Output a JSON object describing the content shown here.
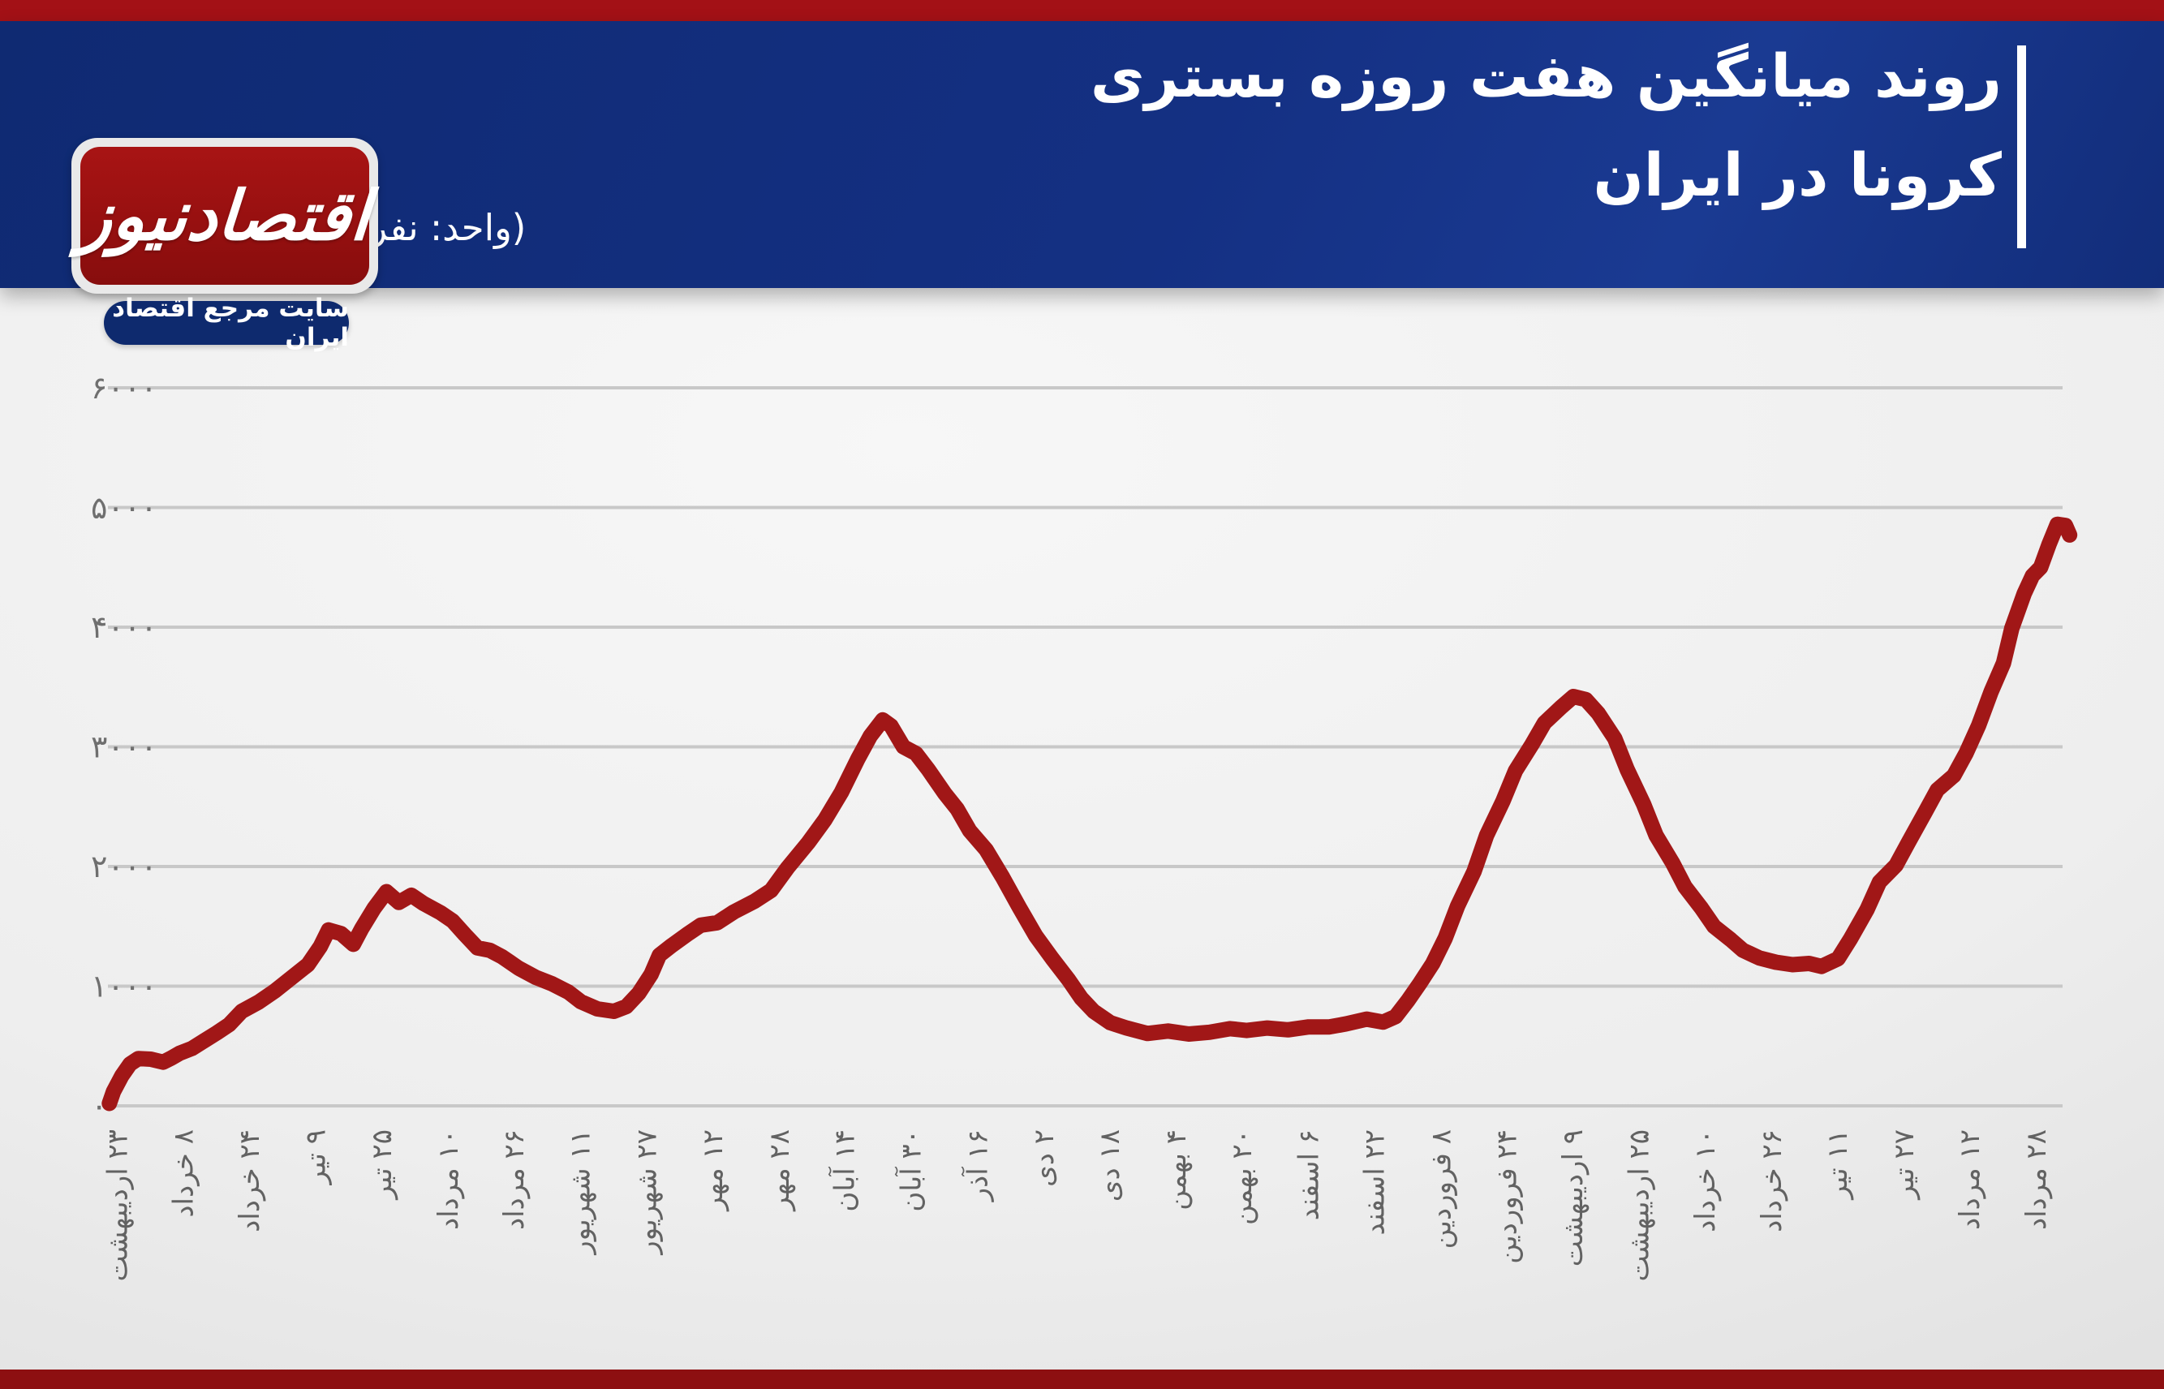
{
  "header": {
    "title_line1": "روند میانگین هفت روزه بستری",
    "title_line2": "کرونا در ایران",
    "unit": "(واحد: نفر)",
    "banner_color": "#143083",
    "top_strip_color": "#a31116",
    "bottom_strip_color": "#8d0f11",
    "accent_bar_color": "#ffffff"
  },
  "logo": {
    "wordmark": "اقتصادنیوز",
    "tagline": "سایت مرجع اقتصاد ایران",
    "box_color": "#9c1111",
    "tagline_bg": "#0e2a6e"
  },
  "chart_data": {
    "type": "line",
    "title": "روند میانگین هفت روزه بستری کرونا در ایران",
    "unit_label": "(واحد: نفر)",
    "line_color": "#a11717",
    "grid_color": "#c8c8c8",
    "axis_text_color": "#6f6f6f",
    "ylim": [
      0,
      6000
    ],
    "grid": true,
    "legend": "none",
    "y_ticks": [
      {
        "value": 0,
        "label": "۰"
      },
      {
        "value": 1000,
        "label": "۱۰۰۰"
      },
      {
        "value": 2000,
        "label": "۲۰۰۰"
      },
      {
        "value": 3000,
        "label": "۳۰۰۰"
      },
      {
        "value": 4000,
        "label": "۴۰۰۰"
      },
      {
        "value": 5000,
        "label": "۵۰۰۰"
      },
      {
        "value": 6000,
        "label": "۶۰۰۰"
      }
    ],
    "x_tick_interval_days": 16,
    "x_ticks": [
      {
        "day": 0,
        "label": "۲۳ اردیبهشت"
      },
      {
        "day": 16,
        "label": "۸ خرداد"
      },
      {
        "day": 32,
        "label": "۲۴ خرداد"
      },
      {
        "day": 48,
        "label": "۹ تیر"
      },
      {
        "day": 64,
        "label": "۲۵ تیر"
      },
      {
        "day": 80,
        "label": "۱۰ مرداد"
      },
      {
        "day": 96,
        "label": "۲۶ مرداد"
      },
      {
        "day": 112,
        "label": "۱۱ شهریور"
      },
      {
        "day": 128,
        "label": "۲۷ شهریور"
      },
      {
        "day": 144,
        "label": "۱۲ مهر"
      },
      {
        "day": 160,
        "label": "۲۸ مهر"
      },
      {
        "day": 176,
        "label": "۱۴ آبان"
      },
      {
        "day": 192,
        "label": "۳۰ آبان"
      },
      {
        "day": 208,
        "label": "۱۶ آذر"
      },
      {
        "day": 224,
        "label": "۲ دی"
      },
      {
        "day": 240,
        "label": "۱۸ دی"
      },
      {
        "day": 256,
        "label": "۴ بهمن"
      },
      {
        "day": 272,
        "label": "۲۰ بهمن"
      },
      {
        "day": 288,
        "label": "۶ اسفند"
      },
      {
        "day": 304,
        "label": "۲۲ اسفند"
      },
      {
        "day": 320,
        "label": "۸ فروردین"
      },
      {
        "day": 336,
        "label": "۲۴ فروردین"
      },
      {
        "day": 352,
        "label": "۹ اردیبهشت"
      },
      {
        "day": 368,
        "label": "۲۵ اردیبهشت"
      },
      {
        "day": 384,
        "label": "۱۰ خرداد"
      },
      {
        "day": 400,
        "label": "۲۶ خرداد"
      },
      {
        "day": 416,
        "label": "۱۱ تیر"
      },
      {
        "day": 432,
        "label": "۲۷ تیر"
      },
      {
        "day": 448,
        "label": "۱۲ مرداد"
      },
      {
        "day": 464,
        "label": "۲۸ مرداد"
      }
    ],
    "series": [
      {
        "name": "میانگین هفت روزه بستری",
        "points": [
          [
            -2,
            20
          ],
          [
            -1,
            120
          ],
          [
            1,
            250
          ],
          [
            3,
            350
          ],
          [
            5,
            395
          ],
          [
            8,
            390
          ],
          [
            11,
            365
          ],
          [
            13,
            400
          ],
          [
            15,
            440
          ],
          [
            18,
            480
          ],
          [
            21,
            545
          ],
          [
            24,
            610
          ],
          [
            27,
            680
          ],
          [
            30,
            790
          ],
          [
            34,
            865
          ],
          [
            38,
            960
          ],
          [
            42,
            1070
          ],
          [
            46,
            1180
          ],
          [
            49,
            1330
          ],
          [
            51,
            1470
          ],
          [
            54,
            1440
          ],
          [
            57,
            1350
          ],
          [
            59,
            1480
          ],
          [
            62,
            1650
          ],
          [
            65,
            1790
          ],
          [
            68,
            1700
          ],
          [
            71,
            1760
          ],
          [
            74,
            1690
          ],
          [
            78,
            1615
          ],
          [
            81,
            1545
          ],
          [
            84,
            1430
          ],
          [
            87,
            1320
          ],
          [
            90,
            1300
          ],
          [
            93,
            1245
          ],
          [
            97,
            1150
          ],
          [
            101,
            1075
          ],
          [
            105,
            1020
          ],
          [
            109,
            950
          ],
          [
            112,
            870
          ],
          [
            116,
            810
          ],
          [
            120,
            790
          ],
          [
            123,
            830
          ],
          [
            126,
            940
          ],
          [
            129,
            1100
          ],
          [
            131,
            1260
          ],
          [
            134,
            1340
          ],
          [
            138,
            1440
          ],
          [
            141,
            1510
          ],
          [
            145,
            1530
          ],
          [
            149,
            1620
          ],
          [
            154,
            1710
          ],
          [
            158,
            1800
          ],
          [
            162,
            1990
          ],
          [
            167,
            2200
          ],
          [
            171,
            2390
          ],
          [
            175,
            2620
          ],
          [
            179,
            2900
          ],
          [
            182,
            3090
          ],
          [
            185,
            3225
          ],
          [
            187,
            3175
          ],
          [
            190,
            3000
          ],
          [
            193,
            2945
          ],
          [
            196,
            2810
          ],
          [
            200,
            2610
          ],
          [
            203,
            2480
          ],
          [
            206,
            2300
          ],
          [
            210,
            2140
          ],
          [
            214,
            1910
          ],
          [
            218,
            1660
          ],
          [
            222,
            1420
          ],
          [
            226,
            1230
          ],
          [
            230,
            1050
          ],
          [
            233,
            900
          ],
          [
            236,
            790
          ],
          [
            240,
            695
          ],
          [
            244,
            650
          ],
          [
            249,
            605
          ],
          [
            254,
            625
          ],
          [
            259,
            600
          ],
          [
            264,
            615
          ],
          [
            269,
            645
          ],
          [
            273,
            630
          ],
          [
            278,
            650
          ],
          [
            283,
            635
          ],
          [
            288,
            660
          ],
          [
            293,
            660
          ],
          [
            297,
            685
          ],
          [
            302,
            725
          ],
          [
            306,
            700
          ],
          [
            309,
            745
          ],
          [
            312,
            880
          ],
          [
            315,
            1030
          ],
          [
            318,
            1190
          ],
          [
            321,
            1400
          ],
          [
            324,
            1670
          ],
          [
            328,
            1960
          ],
          [
            331,
            2260
          ],
          [
            335,
            2550
          ],
          [
            338,
            2800
          ],
          [
            342,
            3020
          ],
          [
            345,
            3200
          ],
          [
            349,
            3330
          ],
          [
            352,
            3420
          ],
          [
            355,
            3395
          ],
          [
            358,
            3280
          ],
          [
            362,
            3070
          ],
          [
            365,
            2810
          ],
          [
            369,
            2520
          ],
          [
            372,
            2260
          ],
          [
            376,
            2030
          ],
          [
            379,
            1830
          ],
          [
            383,
            1650
          ],
          [
            386,
            1500
          ],
          [
            390,
            1390
          ],
          [
            393,
            1300
          ],
          [
            397,
            1235
          ],
          [
            401,
            1200
          ],
          [
            405,
            1180
          ],
          [
            409,
            1190
          ],
          [
            412,
            1165
          ],
          [
            416,
            1230
          ],
          [
            419,
            1395
          ],
          [
            423,
            1640
          ],
          [
            426,
            1870
          ],
          [
            430,
            2010
          ],
          [
            433,
            2200
          ],
          [
            437,
            2450
          ],
          [
            440,
            2640
          ],
          [
            444,
            2760
          ],
          [
            447,
            2950
          ],
          [
            450,
            3180
          ],
          [
            453,
            3460
          ],
          [
            456,
            3700
          ],
          [
            458,
            3990
          ],
          [
            461,
            4280
          ],
          [
            463,
            4430
          ],
          [
            465,
            4500
          ],
          [
            467,
            4690
          ],
          [
            469,
            4860
          ],
          [
            471,
            4850
          ],
          [
            472,
            4770
          ]
        ]
      }
    ]
  }
}
